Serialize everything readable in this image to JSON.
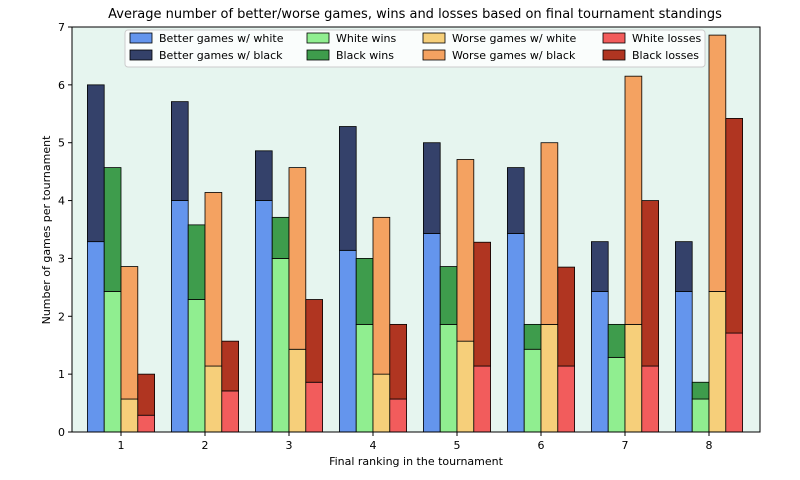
{
  "chart_data": {
    "type": "bar",
    "title": "Average number of better/worse games, wins and losses based on final tournament standings",
    "xlabel": "Final ranking in the tournament",
    "ylabel": "Number of games per tournament",
    "categories": [
      "1",
      "2",
      "3",
      "4",
      "5",
      "6",
      "7",
      "8"
    ],
    "ylim": [
      0,
      7
    ],
    "yticks": [
      0,
      1,
      2,
      3,
      4,
      5,
      6,
      7
    ],
    "background_color": "#e6f5ef",
    "legend_position": "top",
    "series": [
      {
        "name": "Better games w/ white",
        "color": "#6495ed",
        "group": 0,
        "values": [
          3.29,
          4.0,
          4.0,
          3.14,
          3.43,
          3.43,
          2.43,
          2.43
        ]
      },
      {
        "name": "Better games w/ black",
        "color": "#34416a",
        "group": 0,
        "values": [
          2.71,
          1.71,
          0.86,
          2.14,
          1.57,
          1.14,
          0.86,
          0.86
        ]
      },
      {
        "name": "White wins",
        "color": "#90ee90",
        "group": 1,
        "values": [
          2.43,
          2.29,
          3.0,
          1.86,
          1.86,
          1.43,
          1.29,
          0.57
        ]
      },
      {
        "name": "Black wins",
        "color": "#3e9c4c",
        "group": 1,
        "values": [
          2.14,
          1.29,
          0.71,
          1.14,
          1.0,
          0.43,
          0.57,
          0.29
        ]
      },
      {
        "name": "Worse games w/ white",
        "color": "#f6cf7a",
        "group": 2,
        "values": [
          0.57,
          1.14,
          1.43,
          1.0,
          1.57,
          1.86,
          1.86,
          2.43
        ]
      },
      {
        "name": "Worse games w/ black",
        "color": "#f4a261",
        "group": 2,
        "values": [
          2.29,
          3.0,
          3.14,
          2.71,
          3.14,
          3.14,
          4.29,
          4.43
        ]
      },
      {
        "name": "White losses",
        "color": "#f25c5c",
        "group": 3,
        "values": [
          0.29,
          0.71,
          0.86,
          0.57,
          1.14,
          1.14,
          1.14,
          1.71
        ]
      },
      {
        "name": "Black losses",
        "color": "#b03521",
        "group": 3,
        "values": [
          0.71,
          0.86,
          1.43,
          1.29,
          2.14,
          1.71,
          2.86,
          3.71
        ]
      }
    ]
  }
}
